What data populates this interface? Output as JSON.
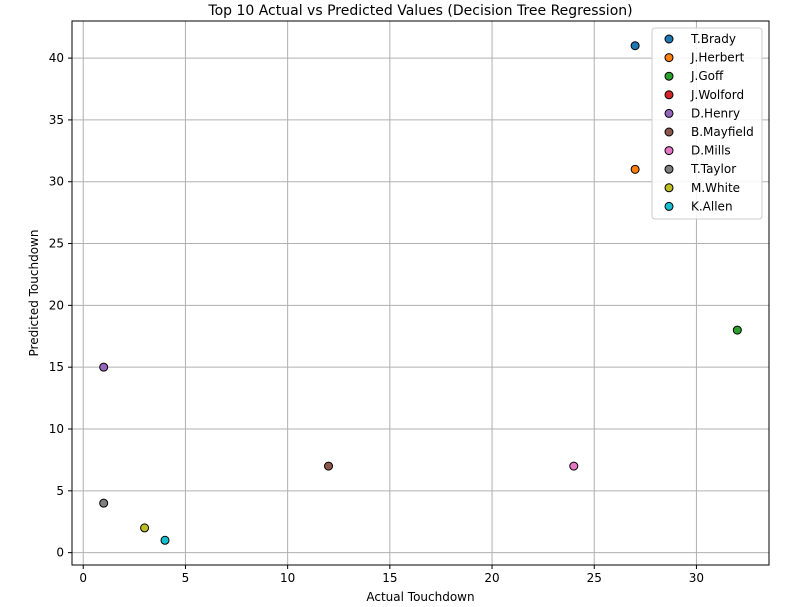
{
  "chart_data": {
    "type": "scatter",
    "title": "Top 10 Actual vs Predicted Values (Decision Tree Regression)",
    "xlabel": "Actual Touchdown",
    "ylabel": "Predicted Touchdown",
    "xlim": [
      -0.55,
      33.55
    ],
    "ylim": [
      -1.0,
      43.0
    ],
    "xticks": [
      0,
      5,
      10,
      15,
      20,
      25,
      30
    ],
    "yticks": [
      0,
      5,
      10,
      15,
      20,
      25,
      30,
      35,
      40
    ],
    "grid": true,
    "legend_position": "top-right",
    "series": [
      {
        "name": "T.Brady",
        "color": "#1f77b4",
        "points": [
          {
            "x": 27,
            "y": 41
          }
        ]
      },
      {
        "name": "J.Herbert",
        "color": "#ff7f0e",
        "points": [
          {
            "x": 27,
            "y": 31
          }
        ]
      },
      {
        "name": "J.Goff",
        "color": "#2ca02c",
        "points": [
          {
            "x": 32,
            "y": 18
          }
        ]
      },
      {
        "name": "J.Wolford",
        "color": "#d62728",
        "points": []
      },
      {
        "name": "D.Henry",
        "color": "#9467bd",
        "points": [
          {
            "x": 1,
            "y": 15
          }
        ]
      },
      {
        "name": "B.Mayfield",
        "color": "#8c564b",
        "points": [
          {
            "x": 12,
            "y": 7
          }
        ]
      },
      {
        "name": "D.Mills",
        "color": "#e377c2",
        "points": [
          {
            "x": 24,
            "y": 7
          }
        ]
      },
      {
        "name": "T.Taylor",
        "color": "#7f7f7f",
        "points": [
          {
            "x": 1,
            "y": 4
          }
        ]
      },
      {
        "name": "M.White",
        "color": "#bcbd22",
        "points": [
          {
            "x": 3,
            "y": 2
          }
        ]
      },
      {
        "name": "K.Allen",
        "color": "#17becf",
        "points": [
          {
            "x": 4,
            "y": 1
          }
        ]
      }
    ]
  }
}
